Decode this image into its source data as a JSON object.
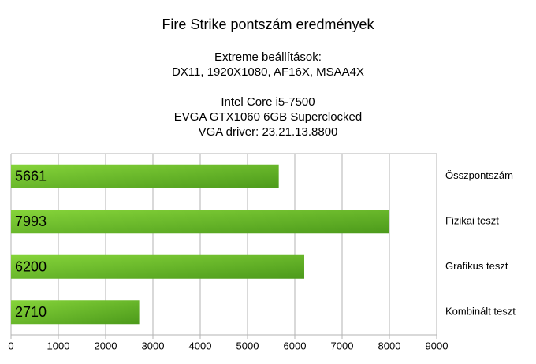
{
  "chart_data": {
    "type": "barh",
    "title": "Fire Strike pontszám eredmények",
    "subtitle": [
      [
        "Extreme beállítások:",
        "DX11, 1920X1080, AF16X, MSAA4X"
      ],
      [
        "Intel Core i5-7500",
        "EVGA GTX1060 6GB Superclocked",
        "VGA driver: 23.21.13.8800"
      ]
    ],
    "categories": [
      "Összpontszám",
      "Fizikai teszt",
      "Grafikus teszt",
      "Kombinált teszt"
    ],
    "values": [
      5661,
      7993,
      6200,
      2710
    ],
    "color": [
      "#86d43a",
      "#4c9a1b"
    ],
    "xlim": [
      0,
      9000
    ],
    "xticks": [
      0,
      1000,
      2000,
      3000,
      4000,
      5000,
      6000,
      7000,
      8000,
      9000
    ],
    "grid": true
  }
}
